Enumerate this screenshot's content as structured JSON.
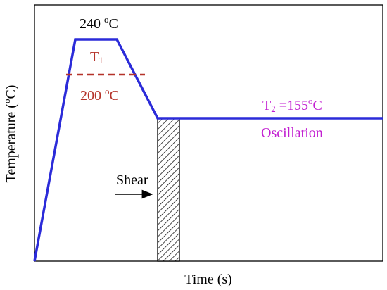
{
  "diagram": {
    "xlabel": "Time (s)",
    "ylabel_main": "Temperature (",
    "ylabel_sup": "o",
    "ylabel_end": "C)",
    "peak": {
      "value": "240 ",
      "sup": "o",
      "unit": "C"
    },
    "t1": {
      "base": "T",
      "sub": "1"
    },
    "mid": {
      "value": "200 ",
      "sup": "o",
      "unit": "C"
    },
    "t2": {
      "base": "T",
      "sub": "2",
      "eq": " =155",
      "sup": "o",
      "unit": "C"
    },
    "oscillation": "Oscillation",
    "shear": "Shear",
    "colors": {
      "profile": "#2b2bd9",
      "dashed": "#b5332a",
      "t1_label": "#b5332a",
      "mid_label": "#b5332a",
      "t2_label": "#c21fd1",
      "oscillation_label": "#c21fd1",
      "axes": "#000000"
    }
  }
}
